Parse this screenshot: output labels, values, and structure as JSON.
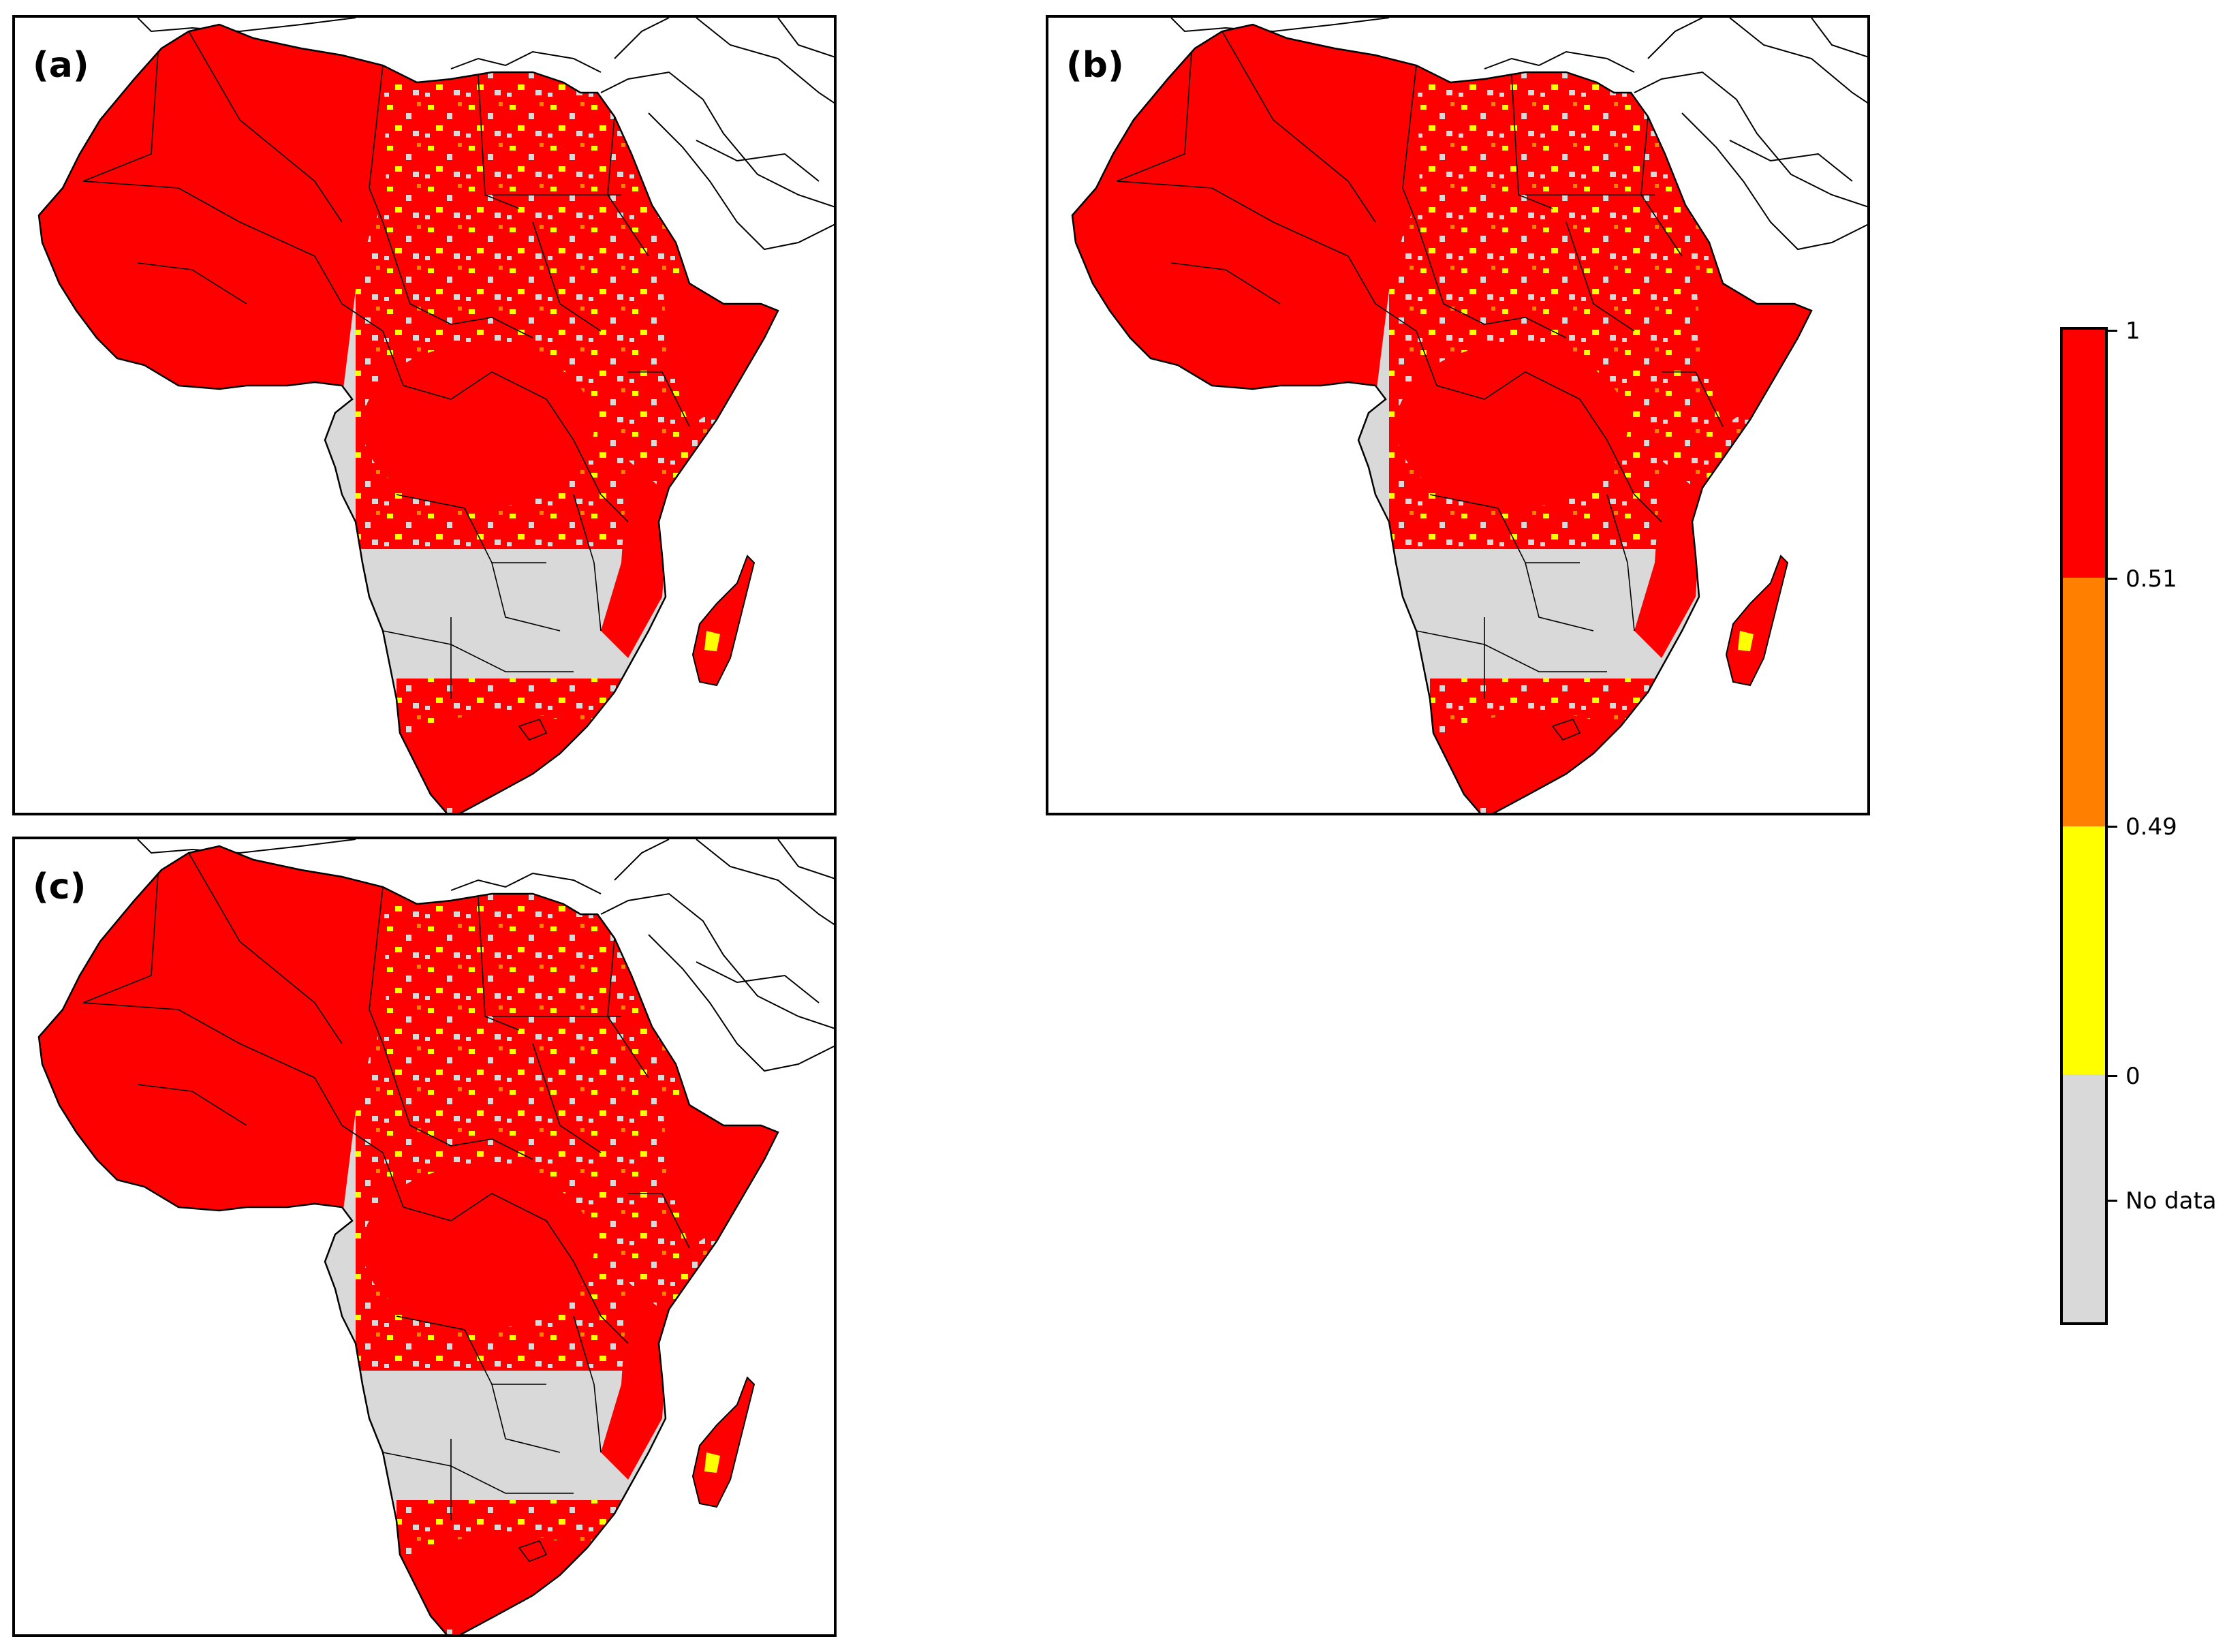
{
  "panels": [
    {
      "id": "a",
      "label": "(a)"
    },
    {
      "id": "b",
      "label": "(b)"
    },
    {
      "id": "c",
      "label": "(c)"
    }
  ],
  "legend": {
    "type": "categorical colorbar",
    "bins": [
      {
        "range": "No data",
        "color": "#d9d9d9"
      },
      {
        "range": "0–0.49",
        "color": "#ffff00"
      },
      {
        "range": "0.49–0.51",
        "color": "#ff7f00"
      },
      {
        "range": "0.51–1",
        "color": "#ff0000"
      }
    ],
    "tick_labels": [
      "1",
      "0.51",
      "0.49",
      "0",
      "No data"
    ]
  },
  "colors": {
    "high": "#ff0000",
    "mid": "#ff7f00",
    "low": "#ffff00",
    "nodata": "#d9d9d9",
    "border": "#000000"
  }
}
